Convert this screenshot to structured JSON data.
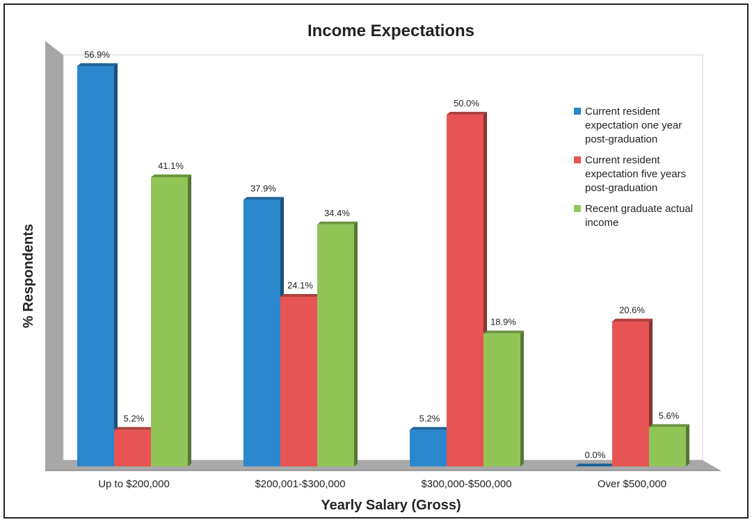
{
  "chart_data": {
    "type": "bar",
    "title": "Income Expectations",
    "xlabel": "Yearly Salary (Gross)",
    "ylabel": "% Respondents",
    "categories": [
      "Up to $200,000",
      "$200,001-$300,000",
      "$300,000-$500,000",
      "Over $500,000"
    ],
    "series": [
      {
        "name": "Current resident expectation one year post-graduation",
        "legend_lines": [
          "Current resident",
          "expectation one year",
          "post-graduation"
        ],
        "color": "#2a87cc",
        "values": [
          56.9,
          37.9,
          5.2,
          0.0
        ],
        "labels": [
          "56.9%",
          "37.9%",
          "5.2%",
          "0.0%"
        ]
      },
      {
        "name": "Current resident expectation five years post-graduation",
        "legend_lines": [
          "Current resident",
          "expectation five years",
          "post-graduation"
        ],
        "color": "#e85454",
        "values": [
          5.2,
          24.1,
          50.0,
          20.6
        ],
        "labels": [
          "5.2%",
          "24.1%",
          "50.0%",
          "20.6%"
        ]
      },
      {
        "name": "Recent graduate actual income",
        "legend_lines": [
          "Recent graduate actual",
          "income"
        ],
        "color": "#92c557",
        "values": [
          41.1,
          34.4,
          18.9,
          5.6
        ],
        "labels": [
          "41.1%",
          "34.4%",
          "18.9%",
          "5.6%"
        ]
      }
    ],
    "ylim": [
      0,
      56.9
    ],
    "grid": false,
    "legend_position": "top-right"
  }
}
